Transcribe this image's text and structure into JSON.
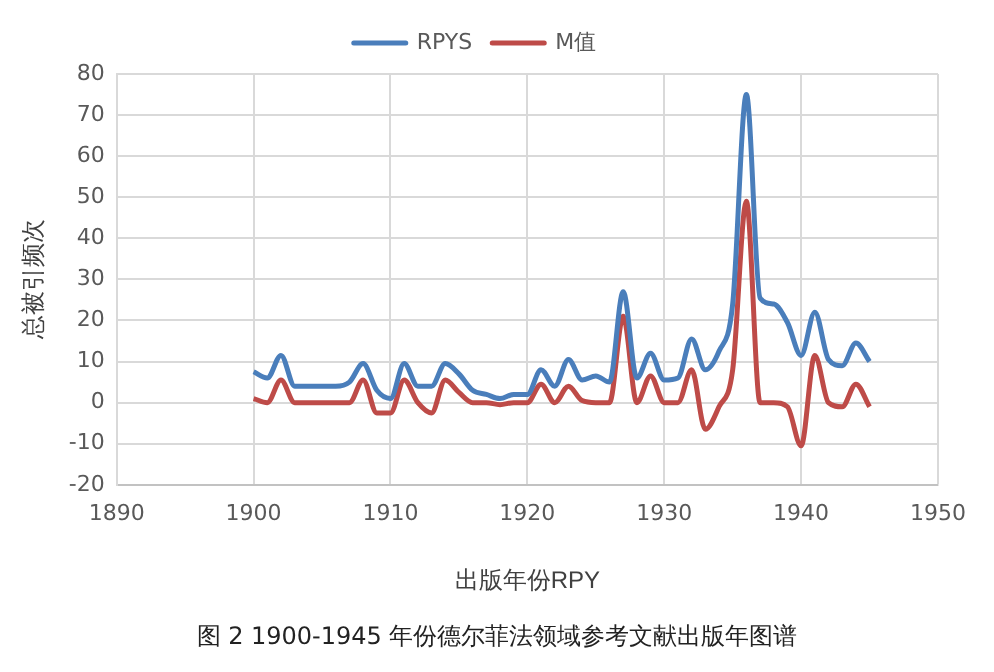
{
  "chart_data": {
    "type": "line",
    "xlabel": "出版年份RPY",
    "ylabel": "总被引频次",
    "annotations": [
      "图 2  1900-1945 年份德尔菲法领域参考文献出版年图谱"
    ],
    "x": [
      1900,
      1901,
      1902,
      1903,
      1904,
      1905,
      1906,
      1907,
      1908,
      1909,
      1910,
      1911,
      1912,
      1913,
      1914,
      1915,
      1916,
      1917,
      1918,
      1919,
      1920,
      1921,
      1922,
      1923,
      1924,
      1925,
      1926,
      1927,
      1928,
      1929,
      1930,
      1931,
      1932,
      1933,
      1934,
      1935,
      1936,
      1937,
      1938,
      1939,
      1940,
      1941,
      1942,
      1943,
      1944,
      1945
    ],
    "series": [
      {
        "name": "RPYS",
        "color": "#4a7ebb",
        "values": [
          7.5,
          6,
          11.5,
          4,
          4,
          4,
          4,
          5,
          9.5,
          3,
          1,
          9.5,
          4,
          4,
          9.5,
          7,
          3,
          2,
          1,
          2,
          2,
          8,
          4,
          10.5,
          5.5,
          6.5,
          5,
          27,
          6,
          12,
          5.5,
          6,
          15.5,
          8,
          12.5,
          24,
          75,
          25.5,
          24,
          19.5,
          11.5,
          22,
          10.5,
          9,
          14.5,
          10
        ]
      },
      {
        "name": "M值",
        "color": "#be4b48",
        "values": [
          1,
          0,
          5.5,
          0,
          0,
          0,
          0,
          0,
          5.5,
          -2.5,
          -2.5,
          5.5,
          0,
          -2.5,
          5.5,
          2.5,
          0,
          0,
          -0.5,
          0,
          0,
          4.5,
          0,
          4,
          0.5,
          0,
          0,
          21,
          0,
          6.5,
          0,
          0,
          8,
          -6.5,
          -1,
          8,
          49,
          0,
          0,
          -1,
          -10.5,
          11.5,
          0,
          -1,
          4.5,
          -1
        ]
      }
    ],
    "xlim": [
      1890,
      1950
    ],
    "xticks": [
      1890,
      1900,
      1910,
      1920,
      1930,
      1940,
      1950
    ],
    "ylim": [
      -20,
      80
    ],
    "yticks": [
      -20,
      -10,
      0,
      10,
      20,
      30,
      40,
      50,
      60,
      70,
      80
    ],
    "grid": true,
    "legend": "top",
    "marker": "none",
    "line_style": "solid"
  }
}
